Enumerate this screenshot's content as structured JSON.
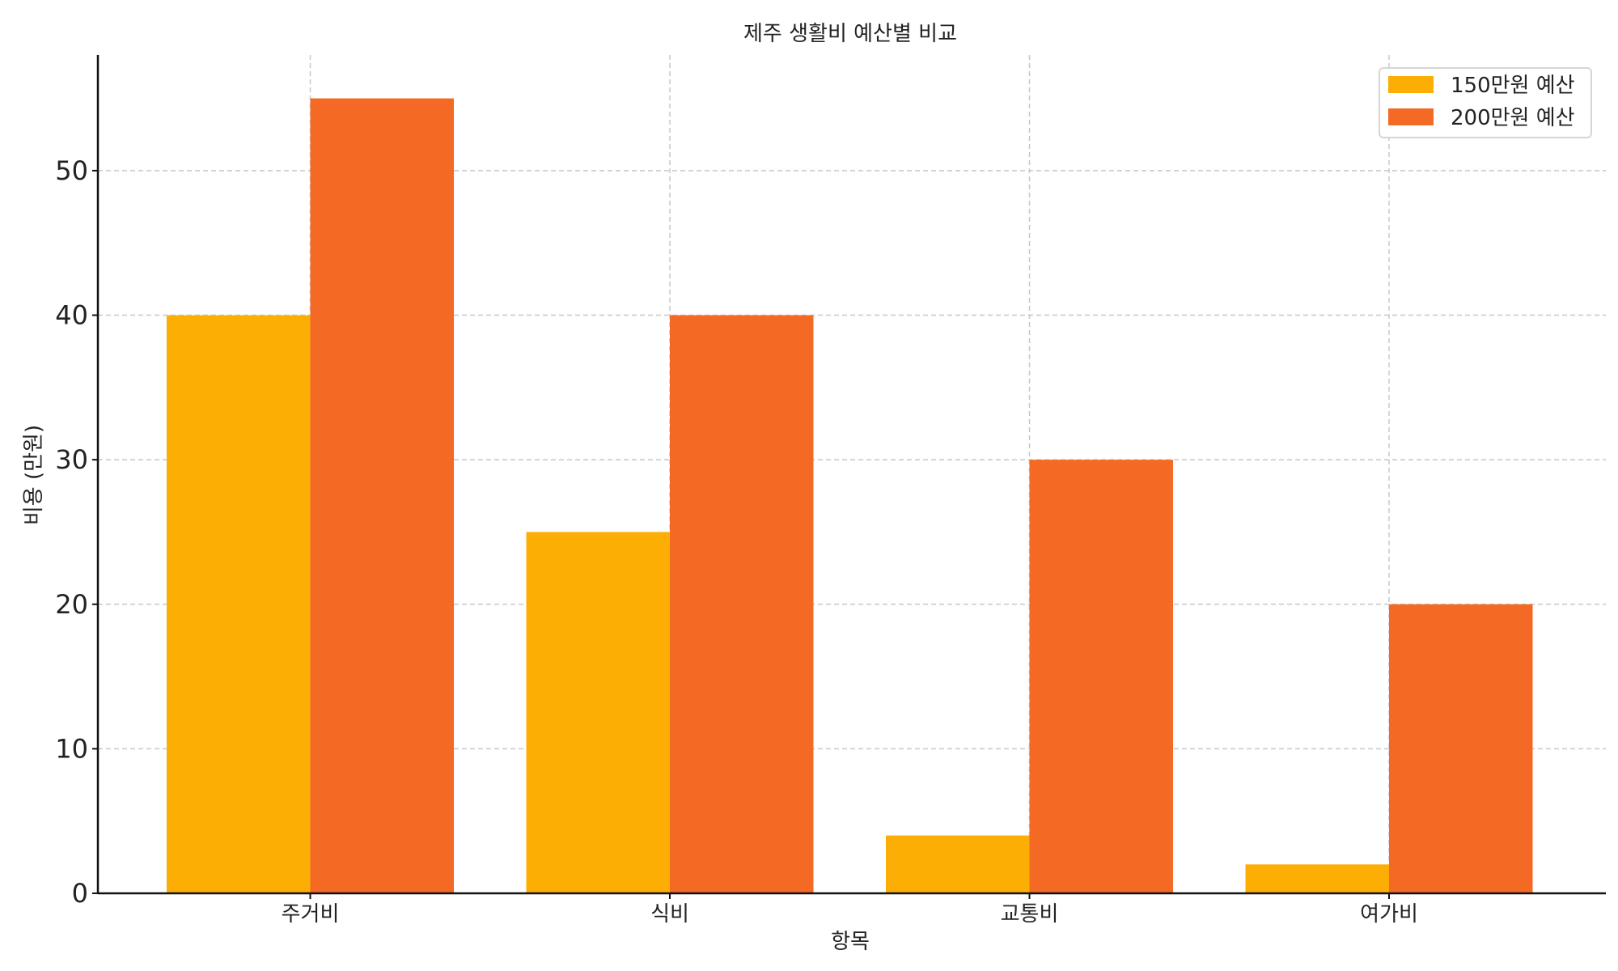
{
  "chart_data": {
    "type": "bar",
    "title": "제주 생활비 예산별 비교",
    "xlabel": "항목",
    "ylabel": "비용 (만원)",
    "categories": [
      "주거비",
      "식비",
      "교통비",
      "여가비"
    ],
    "series": [
      {
        "name": "150만원 예산",
        "color": "#FCAE05",
        "values": [
          40,
          25,
          4,
          2
        ]
      },
      {
        "name": "200만원 예산",
        "color": "#F46A24",
        "values": [
          55,
          40,
          30,
          20
        ]
      }
    ],
    "ylim": [
      0,
      58
    ],
    "yticks": [
      0,
      10,
      20,
      30,
      40,
      50
    ],
    "grid": true,
    "legend_position": "top-right"
  }
}
